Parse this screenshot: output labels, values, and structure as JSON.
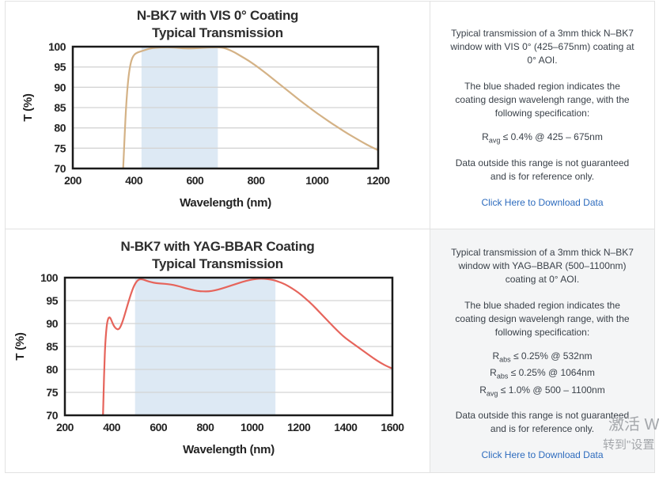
{
  "chart_data": [
    {
      "type": "line",
      "title": "N-BK7 with VIS 0° Coating",
      "subtitle": "Typical Transmission",
      "xlabel": "Wavelength (nm)",
      "ylabel": "T (%)",
      "xlim": [
        200,
        1200
      ],
      "ylim": [
        70,
        100
      ],
      "xticks": [
        200,
        400,
        600,
        800,
        1000,
        1200
      ],
      "yticks": [
        70,
        75,
        80,
        85,
        90,
        95,
        100
      ],
      "grid": "horizontal-only",
      "legend": "none",
      "shaded_region": {
        "x0": 425,
        "x1": 675,
        "color": "#dde9f4",
        "meaning": "coating design wavelength range 425-675nm"
      },
      "line_color": "#d4b286",
      "series": [
        {
          "name": "Typical Transmission",
          "points": [
            [
              365,
              70
            ],
            [
              368,
              75
            ],
            [
              371,
              80
            ],
            [
              374,
              84.5
            ],
            [
              378,
              89
            ],
            [
              383,
              93
            ],
            [
              389,
              95.8
            ],
            [
              395,
              97.3
            ],
            [
              402,
              98.1
            ],
            [
              410,
              98.5
            ],
            [
              420,
              98.8
            ],
            [
              430,
              99.0
            ],
            [
              445,
              99.4
            ],
            [
              460,
              99.65
            ],
            [
              480,
              99.8
            ],
            [
              500,
              99.85
            ],
            [
              520,
              99.85
            ],
            [
              540,
              99.75
            ],
            [
              560,
              99.6
            ],
            [
              580,
              99.55
            ],
            [
              600,
              99.6
            ],
            [
              620,
              99.7
            ],
            [
              645,
              99.8
            ],
            [
              665,
              99.85
            ],
            [
              680,
              99.85
            ],
            [
              695,
              99.7
            ],
            [
              710,
              99.3
            ],
            [
              730,
              98.6
            ],
            [
              750,
              97.7
            ],
            [
              775,
              96.6
            ],
            [
              800,
              95.3
            ],
            [
              825,
              93.9
            ],
            [
              850,
              92.4
            ],
            [
              875,
              90.9
            ],
            [
              900,
              89.4
            ],
            [
              925,
              87.9
            ],
            [
              950,
              86.4
            ],
            [
              975,
              85.0
            ],
            [
              1000,
              83.6
            ],
            [
              1025,
              82.3
            ],
            [
              1050,
              81.0
            ],
            [
              1075,
              79.8
            ],
            [
              1100,
              78.6
            ],
            [
              1125,
              77.5
            ],
            [
              1150,
              76.4
            ],
            [
              1175,
              75.4
            ],
            [
              1200,
              74.5
            ]
          ]
        }
      ]
    },
    {
      "type": "line",
      "title": "N-BK7 with YAG-BBAR Coating",
      "subtitle": "Typical Transmission",
      "xlabel": "Wavelength (nm)",
      "ylabel": "T (%)",
      "xlim": [
        200,
        1600
      ],
      "ylim": [
        70,
        100
      ],
      "xticks": [
        200,
        400,
        600,
        800,
        1000,
        1200,
        1400,
        1600
      ],
      "yticks": [
        70,
        75,
        80,
        85,
        90,
        95,
        100
      ],
      "grid": "horizontal-only",
      "legend": "none",
      "shaded_region": {
        "x0": 500,
        "x1": 1100,
        "color": "#dde9f4",
        "meaning": "coating design wavelength range 500-1100nm"
      },
      "line_color": "#e6645b",
      "series": [
        {
          "name": "Typical Transmission",
          "points": [
            [
              363,
              70
            ],
            [
              366,
              76
            ],
            [
              369,
              81
            ],
            [
              372,
              85
            ],
            [
              376,
              88
            ],
            [
              380,
              90
            ],
            [
              385,
              91.1
            ],
            [
              390,
              91.4
            ],
            [
              395,
              91.2
            ],
            [
              402,
              90.3
            ],
            [
              410,
              89.4
            ],
            [
              420,
              88.8
            ],
            [
              430,
              88.7
            ],
            [
              438,
              89.3
            ],
            [
              448,
              90.6
            ],
            [
              458,
              92.3
            ],
            [
              470,
              94.4
            ],
            [
              482,
              96.4
            ],
            [
              495,
              98.2
            ],
            [
              508,
              99.3
            ],
            [
              520,
              99.7
            ],
            [
              535,
              99.6
            ],
            [
              550,
              99.3
            ],
            [
              570,
              99.0
            ],
            [
              590,
              98.8
            ],
            [
              615,
              98.7
            ],
            [
              640,
              98.6
            ],
            [
              665,
              98.4
            ],
            [
              690,
              98.1
            ],
            [
              715,
              97.7
            ],
            [
              740,
              97.4
            ],
            [
              765,
              97.1
            ],
            [
              790,
              97.0
            ],
            [
              815,
              97.0
            ],
            [
              840,
              97.2
            ],
            [
              870,
              97.6
            ],
            [
              900,
              98.1
            ],
            [
              930,
              98.6
            ],
            [
              960,
              99.1
            ],
            [
              990,
              99.5
            ],
            [
              1015,
              99.7
            ],
            [
              1040,
              99.8
            ],
            [
              1065,
              99.7
            ],
            [
              1090,
              99.5
            ],
            [
              1110,
              99.2
            ],
            [
              1140,
              98.6
            ],
            [
              1170,
              97.7
            ],
            [
              1200,
              96.7
            ],
            [
              1230,
              95.4
            ],
            [
              1260,
              94.0
            ],
            [
              1290,
              92.4
            ],
            [
              1320,
              90.8
            ],
            [
              1350,
              89.2
            ],
            [
              1380,
              87.7
            ],
            [
              1400,
              86.8
            ],
            [
              1430,
              85.7
            ],
            [
              1460,
              84.6
            ],
            [
              1490,
              83.5
            ],
            [
              1520,
              82.4
            ],
            [
              1550,
              81.4
            ],
            [
              1580,
              80.6
            ],
            [
              1600,
              80.2
            ]
          ]
        }
      ]
    }
  ],
  "panels": [
    {
      "info": {
        "p1": "Typical transmission of a 3mm thick N–BK7 window with VIS 0° (425–675nm) coating at 0° AOI.",
        "p2": "The blue shaded region indicates the coating design wavelengh range, with the following specification:",
        "specs": [
          {
            "base": "R",
            "sub": "avg",
            "rest": " ≤ 0.4% @ 425 – 675nm"
          }
        ],
        "note": "Data outside this range is not guaranteed and is for reference only.",
        "link": "Click Here to Download Data"
      }
    },
    {
      "info": {
        "p1": "Typical transmission of a 3mm thick N–BK7 window with YAG–BBAR (500–1100nm) coating at 0° AOI.",
        "p2": "The blue shaded region indicates the coating design wavelengh range, with the following specification:",
        "specs": [
          {
            "base": "R",
            "sub": "abs",
            "rest": " ≤ 0.25% @ 532nm"
          },
          {
            "base": "R",
            "sub": "abs",
            "rest": " ≤ 0.25% @ 1064nm"
          },
          {
            "base": "R",
            "sub": "avg",
            "rest": " ≤ 1.0% @ 500 – 1100nm"
          }
        ],
        "note": "Data outside this range is not guaranteed and is for reference only.",
        "link": "Click Here to Download Data"
      }
    }
  ],
  "watermark": {
    "line1": "激活 W",
    "line2": "转到\"设置"
  },
  "colors": {
    "shaded_region": "#dde9f4",
    "vis_curve": "#d4b286",
    "yag_curve": "#e6645b",
    "link": "#2e6cbe",
    "gridline": "#d4d4d4",
    "plot_border": "#1a1a1a",
    "info_bottom_bg": "#f4f5f6",
    "table_border": "#e2e2e2"
  }
}
